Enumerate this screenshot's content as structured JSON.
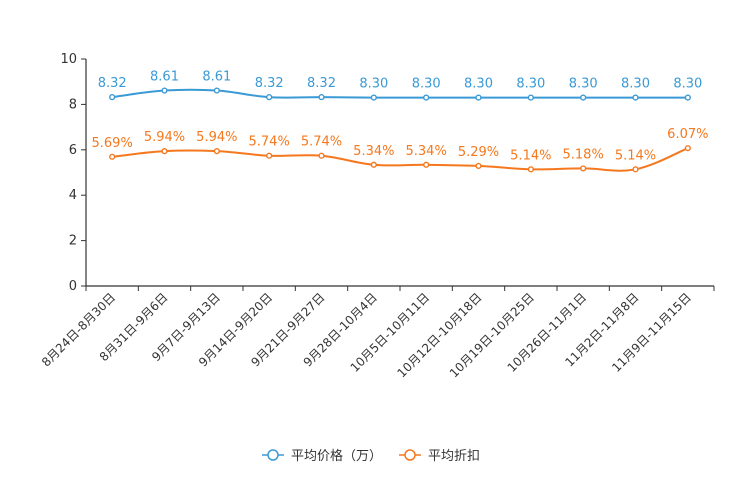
{
  "chart_data": {
    "type": "line",
    "categories": [
      "8月24日-8月30日",
      "8月31日-9月6日",
      "9月7日-9月13日",
      "9月14日-9月20日",
      "9月21日-9月27日",
      "9月28日-10月4日",
      "10月5日-10月11日",
      "10月12日-10月18日",
      "10月19日-10月25日",
      "10月26日-11月1日",
      "11月2日-11月8日",
      "11月9日-11月15日"
    ],
    "series": [
      {
        "name": "平均价格（万）",
        "color": "#3a9ad6",
        "values": [
          8.32,
          8.61,
          8.61,
          8.32,
          8.32,
          8.3,
          8.3,
          8.3,
          8.3,
          8.3,
          8.3,
          8.3
        ],
        "labels": [
          "8.32",
          "8.61",
          "8.61",
          "8.32",
          "8.32",
          "8.30",
          "8.30",
          "8.30",
          "8.30",
          "8.30",
          "8.30",
          "8.30"
        ]
      },
      {
        "name": "平均折扣",
        "color": "#f5781e",
        "values": [
          5.69,
          5.94,
          5.94,
          5.74,
          5.74,
          5.34,
          5.34,
          5.29,
          5.14,
          5.18,
          5.14,
          6.07
        ],
        "labels": [
          "5.69%",
          "5.94%",
          "5.94%",
          "5.74%",
          "5.74%",
          "5.34%",
          "5.34%",
          "5.29%",
          "5.14%",
          "5.18%",
          "5.14%",
          "6.07%"
        ]
      }
    ],
    "y_ticks": [
      "0",
      "2",
      "4",
      "6",
      "8",
      "10"
    ],
    "ylim": [
      0,
      10
    ],
    "title": "",
    "xlabel": "",
    "ylabel": "",
    "grid": false,
    "legend_position": "bottom-center"
  }
}
